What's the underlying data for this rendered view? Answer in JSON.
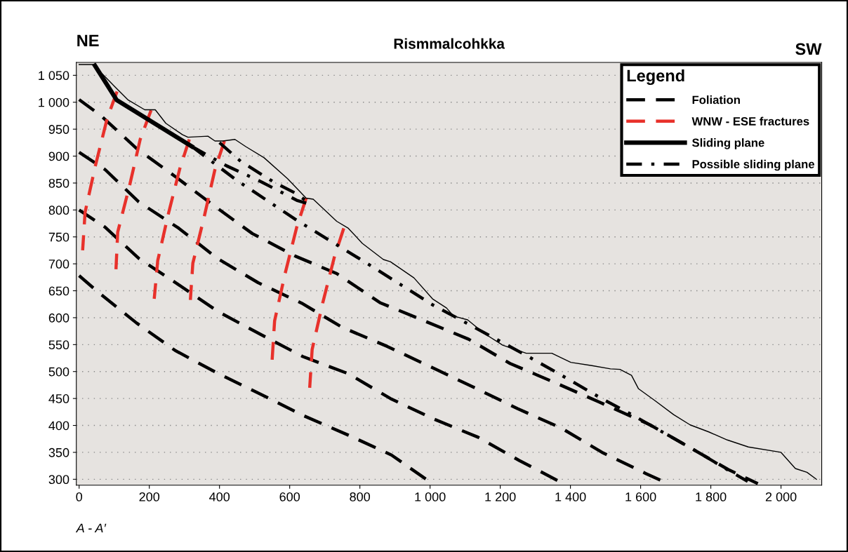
{
  "chart_data": {
    "type": "line",
    "title": "Rismmalcohkka",
    "legend_title": "Legend",
    "legend": "top right",
    "grid": "y",
    "annotations": [
      {
        "text": "NE"
      },
      {
        "text": "SW"
      },
      {
        "text": "A - A′"
      }
    ],
    "xlim": [
      -8,
      2116
    ],
    "ylim": [
      289,
      1074
    ],
    "xticks": [
      0,
      200,
      400,
      600,
      800,
      {
        "value": 1000,
        "label": "1 000"
      },
      {
        "value": 1200,
        "label": "1 200"
      },
      {
        "value": 1400,
        "label": "1 400"
      },
      {
        "value": 1600,
        "label": "1 600"
      },
      {
        "value": 1800,
        "label": "1 800"
      },
      {
        "value": 2000,
        "label": "2 000"
      }
    ],
    "yticks": [
      300,
      350,
      400,
      450,
      500,
      550,
      600,
      650,
      700,
      750,
      800,
      850,
      900,
      950,
      {
        "value": 1000,
        "label": "1 000"
      },
      {
        "value": 1050,
        "label": "1 050"
      }
    ],
    "series": [
      {
        "name": "Foliation",
        "color": "#000000",
        "line_style": "dashed",
        "x": [
          0,
          64,
          164,
          274,
          384,
          494,
          617,
          734,
          857,
          984,
          1110,
          1228,
          1354,
          1480,
          1627,
          1724,
          1850,
          1934
        ],
        "values": [
          1005,
          974,
          914,
          862,
          808,
          756,
          714,
          682,
          628,
          594,
          560,
          515,
          480,
          444,
          401,
          365,
          318,
          292
        ]
      },
      {
        "color": "#000000",
        "line_style": "dashed",
        "x": [
          0,
          74,
          170,
          284,
          394,
          510,
          634,
          750,
          877,
          1004,
          1127,
          1250,
          1374,
          1490,
          1614,
          1684
        ],
        "values": [
          907,
          875,
          815,
          766,
          710,
          665,
          627,
          582,
          547,
          508,
          470,
          431,
          395,
          350,
          311,
          290
        ]
      },
      {
        "color": "#000000",
        "line_style": "dashed",
        "x": [
          0,
          74,
          170,
          284,
          397,
          520,
          637,
          767,
          887,
          1010,
          1137,
          1254,
          1380
        ],
        "values": [
          800,
          768,
          710,
          661,
          611,
          568,
          528,
          496,
          450,
          412,
          378,
          335,
          292
        ]
      },
      {
        "color": "#000000",
        "line_style": "dashed",
        "x": [
          0,
          57,
          164,
          274,
          397,
          520,
          640,
          767,
          890,
          1000
        ],
        "values": [
          678,
          646,
          590,
          539,
          496,
          457,
          418,
          382,
          345,
          295
        ]
      },
      {
        "name": "WNW - ESE fractures",
        "color": "#e8312b",
        "line_style": "dashed",
        "x": [
          108,
          80,
          47,
          17,
          10
        ],
        "values": [
          1020,
          970,
          884,
          796,
          725
        ]
      },
      {
        "color": "#e8312b",
        "line_style": "dashed",
        "x": [
          205,
          174,
          144,
          110,
          105
        ],
        "values": [
          985,
          931,
          846,
          759,
          690
        ]
      },
      {
        "color": "#e8312b",
        "line_style": "dashed",
        "x": [
          314,
          287,
          254,
          224,
          214
        ],
        "values": [
          931,
          877,
          792,
          706,
          635
        ]
      },
      {
        "color": "#e8312b",
        "line_style": "dashed",
        "x": [
          414,
          387,
          357,
          324,
          317
        ],
        "values": [
          928,
          875,
          789,
          701,
          633
        ]
      },
      {
        "color": "#e8312b",
        "line_style": "dashed",
        "x": [
          647,
          620,
          587,
          557,
          550
        ],
        "values": [
          822,
          768,
          682,
          594,
          522
        ]
      },
      {
        "color": "#e8312b",
        "line_style": "dashed",
        "x": [
          754,
          727,
          694,
          664,
          657
        ],
        "values": [
          766,
          712,
          627,
          541,
          470
        ]
      },
      {
        "name": "Sliding plane",
        "color": "#000000",
        "line_style": "solid",
        "x": [
          45,
          107,
          321
        ],
        "values": [
          1068,
          1004,
          918
        ]
      },
      {
        "name": "Possible sliding plane",
        "color": "#000000",
        "line_style": "dashdot",
        "x": [
          321,
          447,
          620,
          820,
          1007,
          1067,
          1274,
          1367,
          1494,
          1561,
          1754,
          1847,
          1905
        ],
        "values": [
          918,
          856,
          781,
          701,
          624,
          603,
          530,
          496,
          448,
          425,
          354,
          318,
          296
        ]
      },
      {
        "color": "#000000",
        "line_style": "dashdot",
        "x": [
          321,
          420,
          520,
          620,
          650
        ],
        "values": [
          918,
          882,
          852,
          818,
          812
        ]
      },
      {
        "color": "#000000",
        "line_style": "dashdot",
        "x": [
          400,
          461,
          554,
          617,
          645
        ],
        "values": [
          925,
          890,
          852,
          831,
          818
        ]
      },
      {
        "color": "#000000",
        "line_style": "solid",
        "x": [
          0,
          40,
          100,
          140,
          187,
          217,
          247,
          294,
          310,
          367,
          387,
          410,
          444,
          474,
          527,
          594,
          647,
          667,
          734,
          767,
          807,
          867,
          887,
          954,
          1007,
          1047,
          1067,
          1107,
          1154,
          1207,
          1274,
          1347,
          1401,
          1461,
          1514,
          1541,
          1574,
          1594,
          1641,
          1694,
          1741,
          1794,
          1847,
          1907,
          2000,
          2041,
          2074,
          2101
        ],
        "values": [
          1070,
          1070,
          1030,
          1004,
          986,
          986,
          961,
          940,
          935,
          937,
          928,
          928,
          931,
          918,
          897,
          858,
          822,
          820,
          779,
          766,
          738,
          708,
          704,
          674,
          635,
          618,
          603,
          596,
          571,
          549,
          534,
          534,
          517,
          511,
          505,
          504,
          493,
          468,
          446,
          420,
          401,
          388,
          373,
          360,
          350,
          320,
          313,
          300
        ]
      }
    ]
  }
}
